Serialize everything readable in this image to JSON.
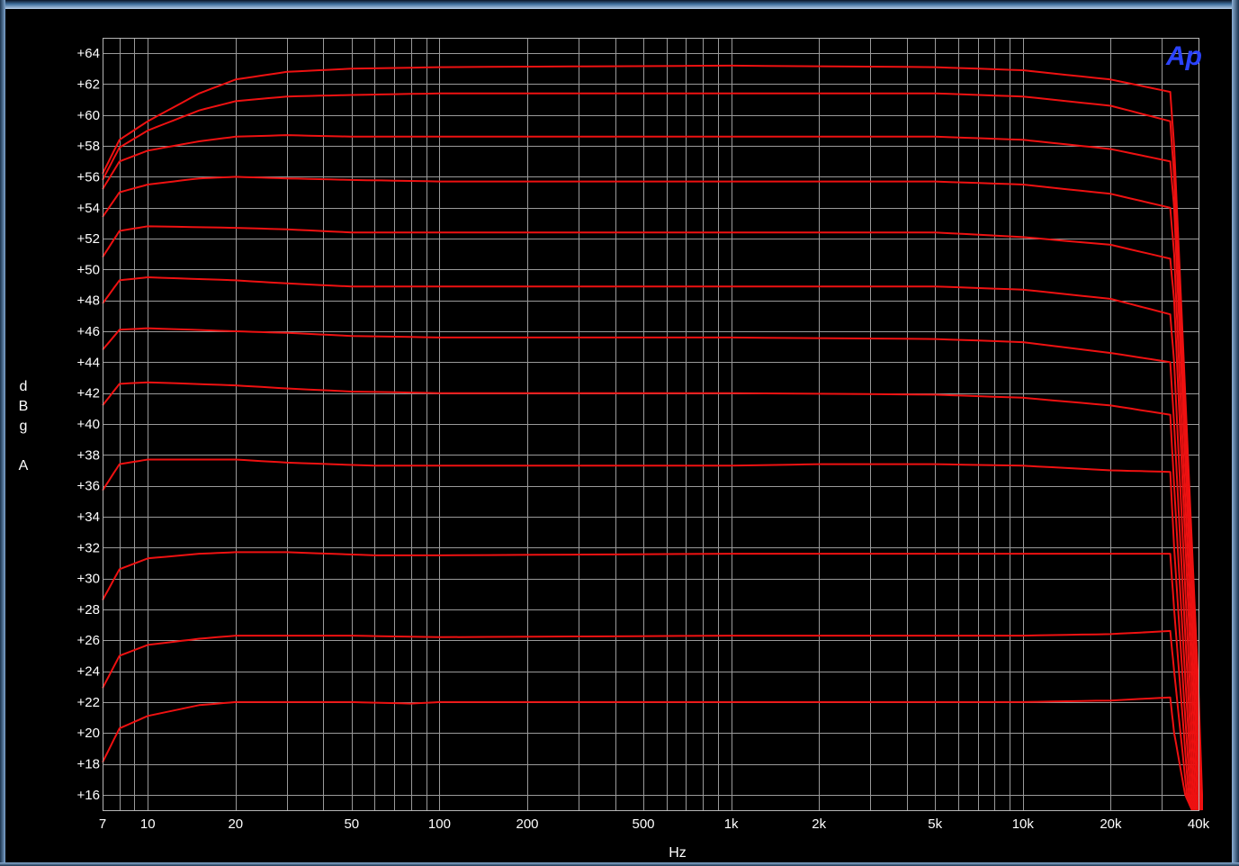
{
  "chart_data": {
    "type": "line",
    "title": "",
    "xlabel": "Hz",
    "ylabel": [
      "d",
      "B",
      "g",
      "",
      "A"
    ],
    "x_scale": "log",
    "xlim": [
      7,
      40000
    ],
    "ylim": [
      15,
      65
    ],
    "grid": true,
    "logo_text": "Ap",
    "colors": {
      "series": "#ee1111",
      "grid": "#9a9a9a",
      "background": "#000000",
      "logo": "#2b43ff"
    },
    "x_ticks": [
      {
        "value": 7,
        "label": "7"
      },
      {
        "value": 10,
        "label": "10"
      },
      {
        "value": 20,
        "label": "20"
      },
      {
        "value": 50,
        "label": "50"
      },
      {
        "value": 100,
        "label": "100"
      },
      {
        "value": 200,
        "label": "200"
      },
      {
        "value": 500,
        "label": "500"
      },
      {
        "value": 1000,
        "label": "1k"
      },
      {
        "value": 2000,
        "label": "2k"
      },
      {
        "value": 5000,
        "label": "5k"
      },
      {
        "value": 10000,
        "label": "10k"
      },
      {
        "value": 20000,
        "label": "20k"
      },
      {
        "value": 40000,
        "label": "40k"
      }
    ],
    "y_ticks": [
      {
        "value": 16,
        "label": "+16"
      },
      {
        "value": 18,
        "label": "+18"
      },
      {
        "value": 20,
        "label": "+20"
      },
      {
        "value": 22,
        "label": "+22"
      },
      {
        "value": 24,
        "label": "+24"
      },
      {
        "value": 26,
        "label": "+26"
      },
      {
        "value": 28,
        "label": "+28"
      },
      {
        "value": 30,
        "label": "+30"
      },
      {
        "value": 32,
        "label": "+32"
      },
      {
        "value": 34,
        "label": "+34"
      },
      {
        "value": 36,
        "label": "+36"
      },
      {
        "value": 38,
        "label": "+38"
      },
      {
        "value": 40,
        "label": "+40"
      },
      {
        "value": 42,
        "label": "+42"
      },
      {
        "value": 44,
        "label": "+44"
      },
      {
        "value": 46,
        "label": "+46"
      },
      {
        "value": 48,
        "label": "+48"
      },
      {
        "value": 50,
        "label": "+50"
      },
      {
        "value": 52,
        "label": "+52"
      },
      {
        "value": 54,
        "label": "+54"
      },
      {
        "value": 56,
        "label": "+56"
      },
      {
        "value": 58,
        "label": "+58"
      },
      {
        "value": 60,
        "label": "+60"
      },
      {
        "value": 62,
        "label": "+62"
      },
      {
        "value": 64,
        "label": "+64"
      }
    ],
    "series": [
      {
        "points": [
          [
            7,
            18.1
          ],
          [
            8,
            20.3
          ],
          [
            10,
            21.1
          ],
          [
            15,
            21.8
          ],
          [
            20,
            22.0
          ],
          [
            50,
            22.0
          ],
          [
            80,
            21.9
          ],
          [
            100,
            22.0
          ],
          [
            1000,
            22.0
          ],
          [
            10000,
            22.0
          ],
          [
            20000,
            22.1
          ],
          [
            32000,
            22.3
          ],
          [
            33000,
            20.0
          ],
          [
            36000,
            16.0
          ],
          [
            38000,
            15.0
          ]
        ]
      },
      {
        "points": [
          [
            7,
            22.9
          ],
          [
            8,
            25.0
          ],
          [
            10,
            25.7
          ],
          [
            15,
            26.1
          ],
          [
            20,
            26.3
          ],
          [
            50,
            26.3
          ],
          [
            100,
            26.2
          ],
          [
            1000,
            26.3
          ],
          [
            10000,
            26.3
          ],
          [
            20000,
            26.4
          ],
          [
            32000,
            26.6
          ],
          [
            33000,
            24.0
          ],
          [
            36500,
            16.0
          ],
          [
            38500,
            15.0
          ]
        ]
      },
      {
        "points": [
          [
            7,
            28.6
          ],
          [
            8,
            30.6
          ],
          [
            10,
            31.3
          ],
          [
            15,
            31.6
          ],
          [
            20,
            31.7
          ],
          [
            30,
            31.7
          ],
          [
            60,
            31.5
          ],
          [
            100,
            31.5
          ],
          [
            1000,
            31.6
          ],
          [
            10000,
            31.6
          ],
          [
            20000,
            31.6
          ],
          [
            32000,
            31.6
          ],
          [
            33000,
            28.0
          ],
          [
            37000,
            16.0
          ],
          [
            39000,
            15.0
          ]
        ]
      },
      {
        "points": [
          [
            7,
            35.7
          ],
          [
            8,
            37.4
          ],
          [
            10,
            37.7
          ],
          [
            20,
            37.7
          ],
          [
            30,
            37.5
          ],
          [
            60,
            37.3
          ],
          [
            100,
            37.3
          ],
          [
            1000,
            37.3
          ],
          [
            2000,
            37.4
          ],
          [
            5000,
            37.4
          ],
          [
            10000,
            37.3
          ],
          [
            20000,
            37.0
          ],
          [
            32000,
            36.9
          ],
          [
            33000,
            32.0
          ],
          [
            37500,
            16.0
          ],
          [
            39500,
            15.0
          ]
        ]
      },
      {
        "points": [
          [
            7,
            41.2
          ],
          [
            8,
            42.6
          ],
          [
            10,
            42.7
          ],
          [
            20,
            42.5
          ],
          [
            30,
            42.3
          ],
          [
            50,
            42.1
          ],
          [
            100,
            42.0
          ],
          [
            1000,
            42.0
          ],
          [
            5000,
            41.9
          ],
          [
            10000,
            41.7
          ],
          [
            20000,
            41.2
          ],
          [
            32000,
            40.6
          ],
          [
            33000,
            36.0
          ],
          [
            38000,
            16.0
          ],
          [
            40000,
            15.0
          ]
        ]
      },
      {
        "points": [
          [
            7,
            44.8
          ],
          [
            8,
            46.1
          ],
          [
            10,
            46.2
          ],
          [
            20,
            46.0
          ],
          [
            30,
            45.9
          ],
          [
            50,
            45.7
          ],
          [
            100,
            45.6
          ],
          [
            1000,
            45.6
          ],
          [
            5000,
            45.5
          ],
          [
            10000,
            45.3
          ],
          [
            20000,
            44.6
          ],
          [
            32000,
            44.0
          ],
          [
            33000,
            40.0
          ],
          [
            38500,
            16.0
          ],
          [
            40500,
            15.0
          ]
        ]
      },
      {
        "points": [
          [
            7,
            47.8
          ],
          [
            8,
            49.3
          ],
          [
            10,
            49.5
          ],
          [
            20,
            49.3
          ],
          [
            30,
            49.1
          ],
          [
            50,
            48.9
          ],
          [
            100,
            48.9
          ],
          [
            1000,
            48.9
          ],
          [
            5000,
            48.9
          ],
          [
            10000,
            48.7
          ],
          [
            20000,
            48.1
          ],
          [
            32000,
            47.1
          ],
          [
            33000,
            44.0
          ],
          [
            39000,
            16.0
          ],
          [
            41000,
            15.0
          ]
        ]
      },
      {
        "points": [
          [
            7,
            50.8
          ],
          [
            8,
            52.5
          ],
          [
            10,
            52.8
          ],
          [
            20,
            52.7
          ],
          [
            30,
            52.6
          ],
          [
            50,
            52.4
          ],
          [
            100,
            52.4
          ],
          [
            1000,
            52.4
          ],
          [
            5000,
            52.4
          ],
          [
            10000,
            52.1
          ],
          [
            20000,
            51.6
          ],
          [
            32000,
            50.7
          ],
          [
            33000,
            48.0
          ],
          [
            39500,
            16.0
          ],
          [
            41500,
            15.0
          ]
        ]
      },
      {
        "points": [
          [
            7,
            53.4
          ],
          [
            8,
            55.0
          ],
          [
            10,
            55.5
          ],
          [
            15,
            55.9
          ],
          [
            20,
            56.0
          ],
          [
            30,
            55.9
          ],
          [
            50,
            55.8
          ],
          [
            100,
            55.7
          ],
          [
            1000,
            55.7
          ],
          [
            5000,
            55.7
          ],
          [
            10000,
            55.5
          ],
          [
            20000,
            54.9
          ],
          [
            32000,
            54.0
          ],
          [
            33000,
            51.0
          ],
          [
            40000,
            16.0
          ],
          [
            42000,
            15.0
          ]
        ]
      },
      {
        "points": [
          [
            7,
            55.2
          ],
          [
            8,
            57.0
          ],
          [
            10,
            57.7
          ],
          [
            15,
            58.3
          ],
          [
            20,
            58.6
          ],
          [
            30,
            58.7
          ],
          [
            50,
            58.6
          ],
          [
            100,
            58.6
          ],
          [
            1000,
            58.6
          ],
          [
            5000,
            58.6
          ],
          [
            10000,
            58.4
          ],
          [
            20000,
            57.8
          ],
          [
            32000,
            57.0
          ],
          [
            33000,
            54.0
          ],
          [
            40500,
            16.0
          ],
          [
            42500,
            15.0
          ]
        ]
      },
      {
        "points": [
          [
            7,
            55.8
          ],
          [
            8,
            57.9
          ],
          [
            10,
            59.0
          ],
          [
            15,
            60.3
          ],
          [
            20,
            60.9
          ],
          [
            30,
            61.2
          ],
          [
            50,
            61.3
          ],
          [
            100,
            61.4
          ],
          [
            1000,
            61.4
          ],
          [
            5000,
            61.4
          ],
          [
            10000,
            61.2
          ],
          [
            20000,
            60.6
          ],
          [
            32000,
            59.6
          ],
          [
            33000,
            56.0
          ],
          [
            41000,
            16.0
          ],
          [
            43000,
            15.0
          ]
        ]
      },
      {
        "points": [
          [
            7,
            56.2
          ],
          [
            8,
            58.4
          ],
          [
            10,
            59.6
          ],
          [
            15,
            61.4
          ],
          [
            20,
            62.3
          ],
          [
            30,
            62.8
          ],
          [
            50,
            63.0
          ],
          [
            100,
            63.1
          ],
          [
            1000,
            63.2
          ],
          [
            5000,
            63.1
          ],
          [
            10000,
            62.9
          ],
          [
            20000,
            62.3
          ],
          [
            32000,
            61.5
          ],
          [
            33000,
            58.0
          ],
          [
            41500,
            16.0
          ],
          [
            43500,
            15.0
          ]
        ]
      }
    ]
  }
}
